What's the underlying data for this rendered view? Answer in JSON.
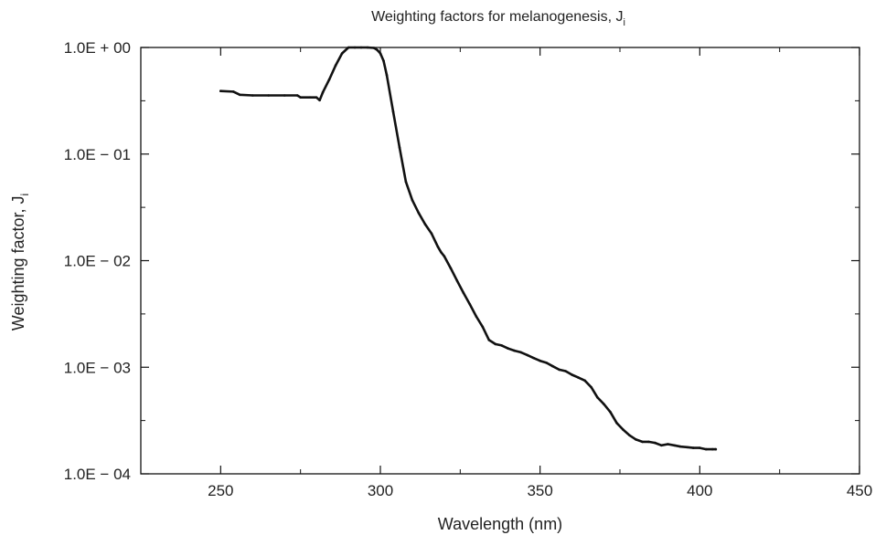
{
  "chart_data": {
    "type": "line",
    "title": {
      "main": "Weighting factors for melanogenesis, J",
      "sub": "i"
    },
    "xlabel": "Wavelength (nm)",
    "ylabel": {
      "main": "Weighting factor, J",
      "sub": "i"
    },
    "xlim": [
      225,
      450
    ],
    "ylim": [
      0.0001,
      1
    ],
    "yscale": "log",
    "grid": false,
    "x_ticks": [
      {
        "value": 250,
        "label": "250"
      },
      {
        "value": 300,
        "label": "300"
      },
      {
        "value": 350,
        "label": "350"
      },
      {
        "value": 400,
        "label": "400"
      },
      {
        "value": 450,
        "label": "450"
      }
    ],
    "y_ticks": [
      {
        "value": 1,
        "label": "1.0E + 00"
      },
      {
        "value": 0.1,
        "label": "1.0E − 01"
      },
      {
        "value": 0.01,
        "label": "1.0E − 02"
      },
      {
        "value": 0.001,
        "label": "1.0E − 03"
      },
      {
        "value": 0.0001,
        "label": "1.0E − 04"
      }
    ],
    "series": [
      {
        "color": "#111111",
        "x": [
          250,
          254,
          256,
          260,
          265,
          270,
          274,
          275,
          278,
          280,
          281,
          282,
          284,
          286,
          288,
          290,
          292,
          294,
          296,
          298,
          299,
          300,
          301,
          302,
          304,
          306,
          308,
          310,
          312,
          314,
          316,
          318,
          319,
          320,
          322,
          324,
          326,
          328,
          330,
          332,
          334,
          336,
          338,
          340,
          342,
          344,
          346,
          348,
          350,
          352,
          354,
          356,
          358,
          360,
          362,
          364,
          366,
          368,
          370,
          372,
          374,
          376,
          378,
          380,
          382,
          384,
          386,
          388,
          390,
          392,
          394,
          396,
          398,
          400,
          402,
          404,
          405
        ],
        "y": [
          0.39,
          0.385,
          0.36,
          0.355,
          0.355,
          0.355,
          0.355,
          0.34,
          0.34,
          0.34,
          0.32,
          0.38,
          0.5,
          0.68,
          0.88,
          1.0,
          1.0,
          1.0,
          1.0,
          0.99,
          0.95,
          0.88,
          0.75,
          0.55,
          0.25,
          0.115,
          0.055,
          0.037,
          0.028,
          0.022,
          0.018,
          0.0135,
          0.012,
          0.011,
          0.0085,
          0.0065,
          0.005,
          0.0039,
          0.003,
          0.0024,
          0.0018,
          0.00165,
          0.0016,
          0.0015,
          0.00143,
          0.00138,
          0.0013,
          0.00122,
          0.00115,
          0.0011,
          0.00102,
          0.00095,
          0.00092,
          0.00085,
          0.0008,
          0.00075,
          0.00065,
          0.00052,
          0.00045,
          0.00038,
          0.0003,
          0.00026,
          0.00023,
          0.00021,
          0.0002,
          0.0002,
          0.000195,
          0.000185,
          0.00019,
          0.000185,
          0.00018,
          0.000178,
          0.000175,
          0.000175,
          0.00017,
          0.00017,
          0.00017
        ]
      }
    ]
  }
}
